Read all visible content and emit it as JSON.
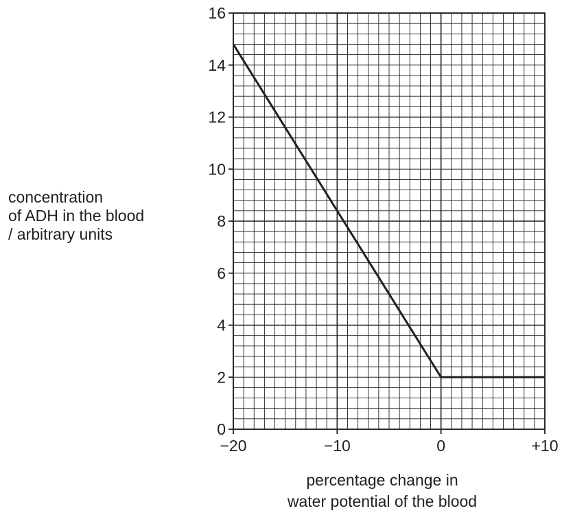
{
  "chart_data": {
    "type": "line",
    "title": "",
    "ylabel_lines": [
      "concentration",
      "of ADH in the blood",
      "/ arbitrary units"
    ],
    "xlabel_lines": [
      "percentage change in",
      "water potential of the blood"
    ],
    "xlim": [
      -20,
      10
    ],
    "ylim": [
      0,
      16
    ],
    "x_ticks": [
      -20,
      -10,
      0,
      10
    ],
    "x_tick_labels": [
      "−20",
      "−10",
      "0",
      "+10"
    ],
    "y_ticks": [
      0,
      2,
      4,
      6,
      8,
      10,
      12,
      14,
      16
    ],
    "y_tick_labels": [
      "0",
      "2",
      "4",
      "6",
      "8",
      "10",
      "12",
      "14",
      "16"
    ],
    "grid": {
      "major_x_step": 10,
      "major_y_step": 4,
      "minor_step_x": 1,
      "minor_step_y": 0.4
    },
    "series": [
      {
        "x": [
          -20,
          0,
          10
        ],
        "y": [
          14.8,
          2,
          2
        ]
      }
    ],
    "colors": {
      "ink": "#231f20",
      "background": "#ffffff"
    }
  }
}
